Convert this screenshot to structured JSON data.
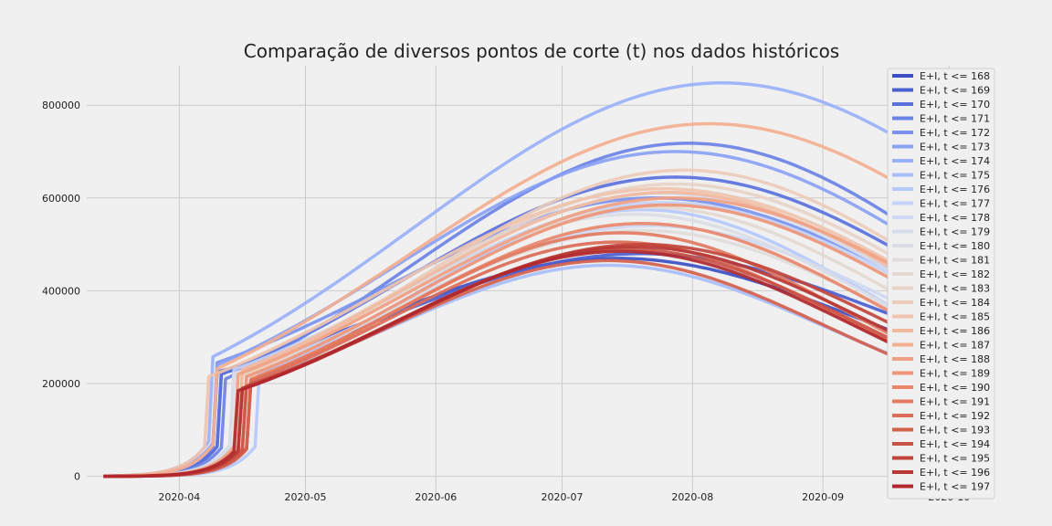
{
  "chart_data": {
    "type": "line",
    "title": "Comparação de diversos pontos de corte (t) nos dados históricos",
    "xlabel": "",
    "ylabel": "",
    "x_range": [
      "2020-03-10",
      "2020-10-12"
    ],
    "ylim": [
      -40000,
      885000
    ],
    "x_ticks": [
      "2020-04",
      "2020-05",
      "2020-06",
      "2020-07",
      "2020-08",
      "2020-09",
      "2020-10"
    ],
    "y_ticks": [
      0,
      200000,
      400000,
      600000,
      800000
    ],
    "y_tick_labels": [
      "0",
      "200000",
      "400000",
      "600000",
      "800000"
    ],
    "grid": true,
    "legend_position": "top-right",
    "x_start": "2020-03-14",
    "x_end": "2020-10-02",
    "series": [
      {
        "name": "E+I, t <= 168",
        "color": "#3c4fc4",
        "jump_date": "2020-04-10",
        "jump_value": 225000,
        "peak_date": "2020-07-14",
        "peak": 470000
      },
      {
        "name": "E+I, t <= 169",
        "color": "#4a5fd1",
        "jump_date": "2020-04-11",
        "jump_value": 222000,
        "peak_date": "2020-07-20",
        "peak": 480000
      },
      {
        "name": "E+I, t <= 170",
        "color": "#5a71dd",
        "jump_date": "2020-04-11",
        "jump_value": 220000,
        "peak_date": "2020-07-28",
        "peak": 645000
      },
      {
        "name": "E+I, t <= 171",
        "color": "#6a82e6",
        "jump_date": "2020-04-12",
        "jump_value": 210000,
        "peak_date": "2020-07-31",
        "peak": 718000
      },
      {
        "name": "E+I, t <= 172",
        "color": "#7a92ee",
        "jump_date": "2020-04-10",
        "jump_value": 245000,
        "peak_date": "2020-07-23",
        "peak": 600000
      },
      {
        "name": "E+I, t <= 173",
        "color": "#8aa2f4",
        "jump_date": "2020-04-10",
        "jump_value": 240000,
        "peak_date": "2020-07-28",
        "peak": 700000
      },
      {
        "name": "E+I, t <= 174",
        "color": "#99b1f8",
        "jump_date": "2020-04-09",
        "jump_value": 258000,
        "peak_date": "2020-08-08",
        "peak": 848000
      },
      {
        "name": "E+I, t <= 175",
        "color": "#a8befb",
        "jump_date": "2020-04-18",
        "jump_value": 205000,
        "peak_date": "2020-07-12",
        "peak": 455000
      },
      {
        "name": "E+I, t <= 176",
        "color": "#b5c9fc",
        "jump_date": "2020-04-20",
        "jump_value": 220000,
        "peak_date": "2020-07-20",
        "peak": 575000
      },
      {
        "name": "E+I, t <= 177",
        "color": "#c3d2f9",
        "jump_date": "2020-04-14",
        "jump_value": 230000,
        "peak_date": "2020-07-25",
        "peak": 590000
      },
      {
        "name": "E+I, t <= 178",
        "color": "#cfd9f3",
        "jump_date": "2020-04-14",
        "jump_value": 215000,
        "peak_date": "2020-07-22",
        "peak": 540000
      },
      {
        "name": "E+I, t <= 179",
        "color": "#d6dcec",
        "jump_date": "2020-04-15",
        "jump_value": 225000,
        "peak_date": "2020-07-25",
        "peak": 610000
      },
      {
        "name": "E+I, t <= 180",
        "color": "#dadde4",
        "jump_date": "2020-04-14",
        "jump_value": 220000,
        "peak_date": "2020-07-18",
        "peak": 565000
      },
      {
        "name": "E+I, t <= 181",
        "color": "#dfdcdb",
        "jump_date": "2020-04-15",
        "jump_value": 215000,
        "peak_date": "2020-07-20",
        "peak": 530000
      },
      {
        "name": "E+I, t <= 182",
        "color": "#e3d9d2",
        "jump_date": "2020-04-16",
        "jump_value": 225000,
        "peak_date": "2020-07-22",
        "peak": 580000
      },
      {
        "name": "E+I, t <= 183",
        "color": "#e8d3c7",
        "jump_date": "2020-04-16",
        "jump_value": 230000,
        "peak_date": "2020-07-28",
        "peak": 630000
      },
      {
        "name": "E+I, t <= 184",
        "color": "#ecccbb",
        "jump_date": "2020-04-17",
        "jump_value": 220000,
        "peak_date": "2020-07-30",
        "peak": 660000
      },
      {
        "name": "E+I, t <= 185",
        "color": "#efc3ad",
        "jump_date": "2020-04-08",
        "jump_value": 215000,
        "peak_date": "2020-07-25",
        "peak": 620000
      },
      {
        "name": "E+I, t <= 186",
        "color": "#f1b99e",
        "jump_date": "2020-04-16",
        "jump_value": 230000,
        "peak_date": "2020-07-26",
        "peak": 612000
      },
      {
        "name": "E+I, t <= 187",
        "color": "#f3af90",
        "jump_date": "2020-04-10",
        "jump_value": 232000,
        "peak_date": "2020-08-05",
        "peak": 760000
      },
      {
        "name": "E+I, t <= 188",
        "color": "#f1a183",
        "jump_date": "2020-04-15",
        "jump_value": 220000,
        "peak_date": "2020-07-28",
        "peak": 600000
      },
      {
        "name": "E+I, t <= 189",
        "color": "#ee9577",
        "jump_date": "2020-04-17",
        "jump_value": 215000,
        "peak_date": "2020-07-26",
        "peak": 585000
      },
      {
        "name": "E+I, t <= 190",
        "color": "#e9876b",
        "jump_date": "2020-04-18",
        "jump_value": 210000,
        "peak_date": "2020-07-20",
        "peak": 545000
      },
      {
        "name": "E+I, t <= 191",
        "color": "#e37a60",
        "jump_date": "2020-04-18",
        "jump_value": 208000,
        "peak_date": "2020-07-15",
        "peak": 525000
      },
      {
        "name": "E+I, t <= 192",
        "color": "#dc6d56",
        "jump_date": "2020-04-18",
        "jump_value": 205000,
        "peak_date": "2020-07-14",
        "peak": 505000
      },
      {
        "name": "E+I, t <= 193",
        "color": "#d4604c",
        "jump_date": "2020-04-18",
        "jump_value": 200000,
        "peak_date": "2020-07-12",
        "peak": 465000
      },
      {
        "name": "E+I, t <= 194",
        "color": "#cb5344",
        "jump_date": "2020-04-17",
        "jump_value": 195000,
        "peak_date": "2020-07-16",
        "peak": 490000
      },
      {
        "name": "E+I, t <= 195",
        "color": "#c2453c",
        "jump_date": "2020-04-16",
        "jump_value": 190000,
        "peak_date": "2020-07-20",
        "peak": 500000
      },
      {
        "name": "E+I, t <= 196",
        "color": "#b93734",
        "jump_date": "2020-04-16",
        "jump_value": 188000,
        "peak_date": "2020-07-18",
        "peak": 495000
      },
      {
        "name": "E+I, t <= 197",
        "color": "#b0282e",
        "jump_date": "2020-04-15",
        "jump_value": 185000,
        "peak_date": "2020-07-15",
        "peak": 485000
      }
    ]
  }
}
